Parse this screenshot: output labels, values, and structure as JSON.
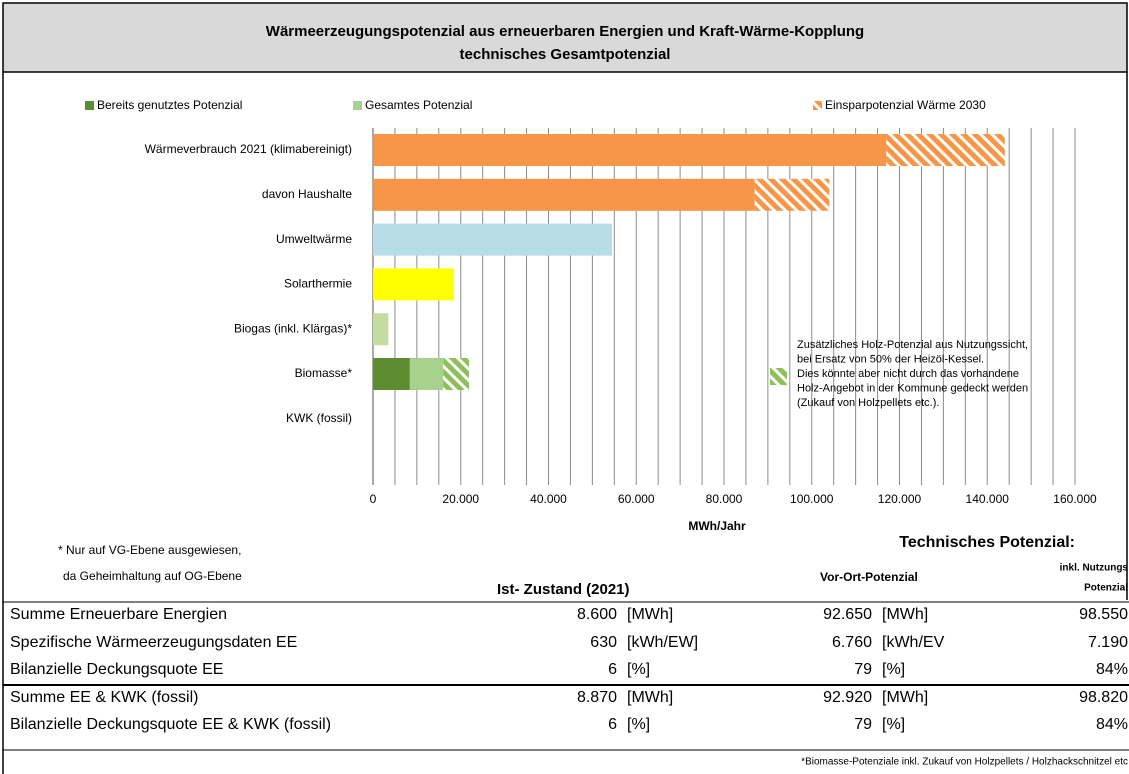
{
  "title": "Wärmeerzeugungspotenzial aus erneuerbaren Energien und Kraft-Wärme-Kopplung",
  "subtitle": "technisches Gesamtpotenzial",
  "chart_data": {
    "type": "bar",
    "orientation": "horizontal",
    "stacked": true,
    "categories": [
      "Wärmeverbrauch 2021 (klimabereinigt)",
      "davon Haushalte",
      "Umweltwärme",
      "Solarthermie",
      "Biogas (inkl. Klärgas)*",
      "Biomasse*",
      "KWK (fossil)"
    ],
    "series": [
      {
        "colors": [
          "#f79646",
          "#f79646",
          "#b7dde8",
          "#ffff00",
          "#c4dca0",
          null,
          null
        ],
        "values": [
          117000,
          87000,
          54500,
          18500,
          3500,
          null,
          null
        ]
      },
      {
        "name": "Bereits genutztes Potenzial",
        "color": "#5e8c31",
        "values": [
          null,
          null,
          null,
          null,
          null,
          8400,
          null
        ]
      },
      {
        "name": "Gesamtes Potenzial",
        "color": "#a9d18e",
        "values": [
          null,
          null,
          null,
          null,
          null,
          7600,
          null
        ]
      },
      {
        "name": "Einsparpotenzial Wärme 2030",
        "color": "#f79646",
        "pattern": "hatch",
        "values": [
          27000,
          17000,
          null,
          null,
          null,
          null,
          null
        ]
      },
      {
        "color": "#8fbf5a",
        "pattern": "hatch",
        "values": [
          null,
          null,
          null,
          null,
          null,
          5900,
          null
        ]
      }
    ],
    "xlim": [
      0,
      160000
    ],
    "xticks": [
      0,
      {
        "value": 20000,
        "label": "20.000"
      },
      {
        "value": 40000,
        "label": "40.000"
      },
      {
        "value": 60000,
        "label": "60.000"
      },
      {
        "value": 80000,
        "label": "80.000"
      },
      {
        "value": 100000,
        "label": "100.000"
      },
      {
        "value": 120000,
        "label": "120.000"
      },
      {
        "value": 140000,
        "label": "140.000"
      },
      {
        "value": 160000,
        "label": "160.000"
      }
    ],
    "minor_xticks": [
      5000,
      10000,
      15000,
      25000,
      30000,
      35000,
      45000,
      50000,
      55000,
      65000,
      70000,
      75000,
      85000,
      90000,
      95000,
      105000,
      110000,
      115000,
      125000,
      130000,
      135000,
      145000,
      150000,
      155000
    ],
    "grid": true,
    "xlabel": "MWh/Jahr",
    "annotation": [
      "Zusätzliches Holz-Potenzial aus Nutzungssicht,",
      "bei Ersatz von 50% der Heizöl-Kessel.",
      "Dies könnte aber nicht durch das vorhandene",
      "Holz-Angebot in der Kommune gedeckt werden",
      "(Zukauf von Holzpellets etc.)."
    ]
  },
  "notes": [
    "* Nur auf VG-Ebene ausgewiesen,",
    "da Geheimhaltung auf OG-Ebene"
  ],
  "table": {
    "group_header": "Technisches Potenzial:",
    "ist_header": "Ist- Zustand (2021)",
    "vor_ort_header": "Vor-Ort-Potenzial",
    "inkl_header": [
      "inkl. Nutzungs",
      "Potenzial"
    ],
    "rows": [
      [
        "Summe Erneuerbare Energien",
        "8.600",
        "[MWh]",
        "92.650",
        "[MWh]",
        "98.550"
      ],
      [
        "Spezifische Wärmeerzeugungsdaten EE",
        "630",
        "[kWh/EW]",
        "6.760",
        "[kWh/EV",
        "7.190"
      ],
      [
        "Bilanzielle Deckungsquote EE",
        "6",
        "[%]",
        "79",
        "[%]",
        "84%"
      ],
      [
        "Summe EE & KWK (fossil)",
        "8.870",
        "[MWh]",
        "92.920",
        "[MWh]",
        "98.820"
      ],
      [
        "Bilanzielle Deckungsquote EE & KWK (fossil)",
        "6",
        "[%]",
        "79",
        "[%]",
        "84%"
      ]
    ]
  },
  "footer": "*Biomasse-Potenziale inkl. Zukauf von Holzpellets / Holzhackschnitzel etc"
}
